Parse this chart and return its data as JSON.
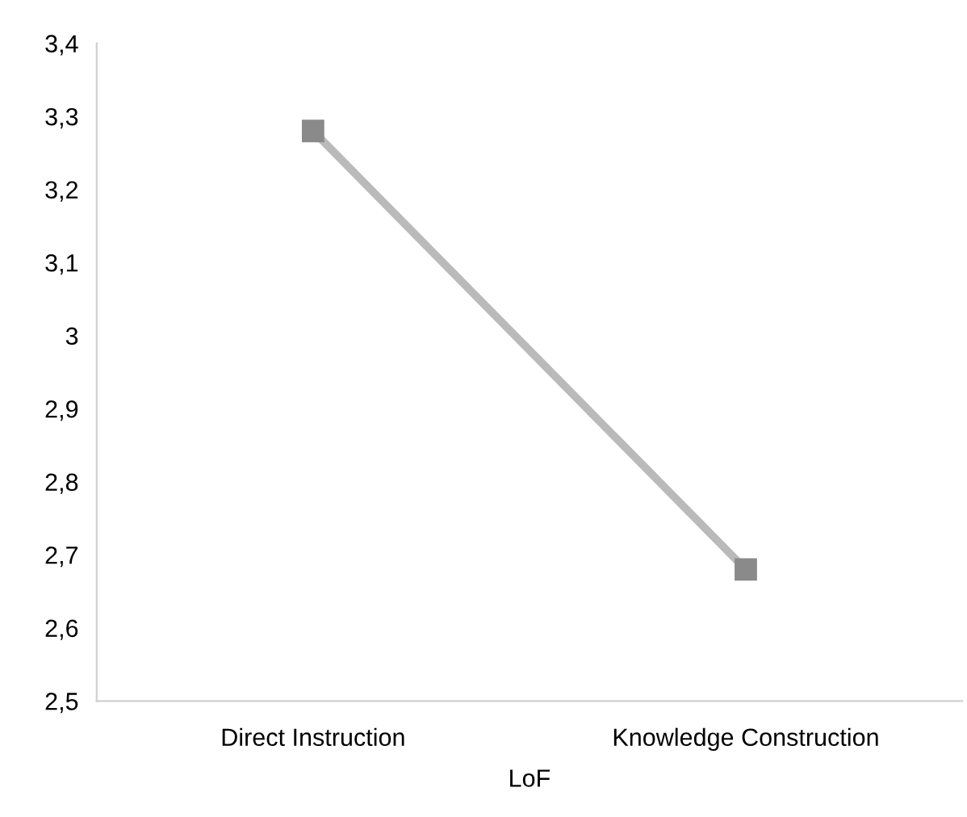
{
  "chart_data": {
    "type": "line",
    "xlabel": "LoF",
    "categories": [
      "Direct Instruction",
      "Knowledge Construction"
    ],
    "series": [
      {
        "color": "#bababa",
        "values": [
          3.28,
          2.68
        ]
      }
    ],
    "marker": "square",
    "line_style": "solid",
    "ylim": [
      2.5,
      3.4
    ],
    "yticks": [
      {
        "value": 2.5,
        "label": "2,5"
      },
      {
        "value": 2.6,
        "label": "2,6"
      },
      {
        "value": 2.7,
        "label": "2,7"
      },
      {
        "value": 2.8,
        "label": "2,8"
      },
      {
        "value": 2.9,
        "label": "2,9"
      },
      {
        "value": 3,
        "label": "3"
      },
      {
        "value": 3.1,
        "label": "3,1"
      },
      {
        "value": 3.2,
        "label": "3,2"
      },
      {
        "value": 3.3,
        "label": "3,3"
      },
      {
        "value": 3.4,
        "label": "3,4"
      }
    ],
    "grid": false,
    "legend": false
  }
}
